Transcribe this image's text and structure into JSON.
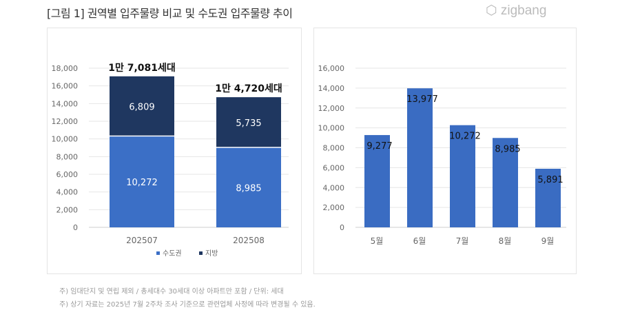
{
  "header": {
    "title": "[그림 1] 권역별 입주물량 비교 및 수도권 입주물량 추이",
    "logo": "zigbang"
  },
  "colors": {
    "metro": "#3b6fc6",
    "region": "#1f3760",
    "bar": "#3a6cc2"
  },
  "chart_data": [
    {
      "type": "bar",
      "stacked": true,
      "categories": [
        "202507",
        "202508"
      ],
      "series": [
        {
          "name": "수도권",
          "values": [
            10272,
            8985
          ]
        },
        {
          "name": "지방",
          "values": [
            6809,
            5735
          ]
        }
      ],
      "totals_labels": [
        "1만 7,081세대",
        "1만 4,720세대"
      ],
      "ylim": [
        0,
        18000
      ],
      "yticks": [
        0,
        2000,
        4000,
        6000,
        8000,
        10000,
        12000,
        14000,
        16000,
        18000
      ],
      "grid": true,
      "legend": "bottom"
    },
    {
      "type": "bar",
      "categories": [
        "5월",
        "6월",
        "7월",
        "8월",
        "9월"
      ],
      "values": [
        9277,
        13977,
        10272,
        8985,
        5891
      ],
      "ylim": [
        0,
        16000
      ],
      "yticks": [
        0,
        2000,
        4000,
        6000,
        8000,
        10000,
        12000,
        14000,
        16000
      ],
      "grid": true
    }
  ],
  "notes": [
    "주) 임대단지 및 연립 제외 / 총세대수 30세대 이상 아파트만 포함 / 단위: 세대",
    "주) 상기 자료는 2025년 7월 2주차 조사 기준으로 관련업체 사정에 따라 변경될 수 있음."
  ]
}
